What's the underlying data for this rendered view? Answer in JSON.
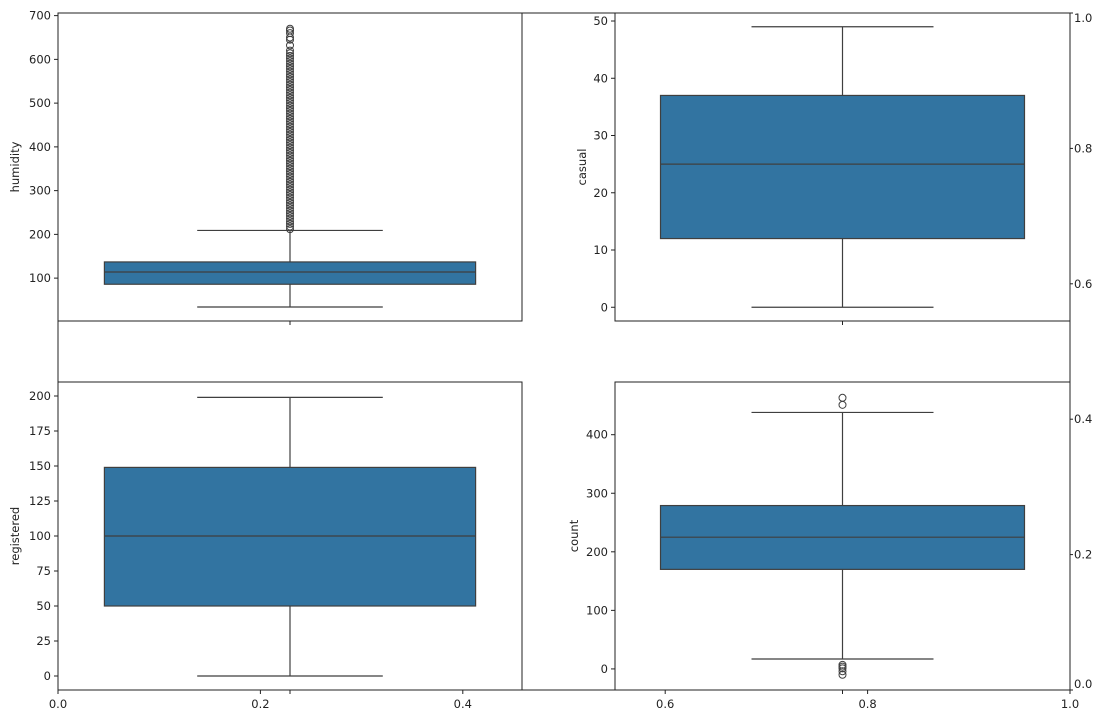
{
  "chart_data": [
    {
      "type": "axes",
      "role": "background",
      "xlim": [
        0,
        1
      ],
      "ylim": [
        0,
        1
      ],
      "xticks": [
        "0.0",
        "0.2",
        "0.4",
        "0.6",
        "0.8",
        "1.0"
      ],
      "yticks": [
        "0.0",
        "0.2",
        "0.4",
        "0.6",
        "0.8",
        "1.0"
      ]
    },
    {
      "type": "box",
      "ylabel": "humidity",
      "ylim": [
        2,
        706
      ],
      "yticks": [
        100,
        200,
        300,
        400,
        500,
        600,
        700
      ],
      "whisker_low": 34,
      "q1": 86,
      "median": 114,
      "q3": 137,
      "whisker_high": 209,
      "outliers": [
        212,
        218,
        224,
        230,
        236,
        242,
        248,
        254,
        260,
        266,
        272,
        278,
        284,
        290,
        296,
        302,
        308,
        314,
        320,
        326,
        332,
        338,
        344,
        350,
        356,
        362,
        368,
        374,
        380,
        386,
        392,
        398,
        404,
        410,
        416,
        422,
        428,
        434,
        440,
        446,
        452,
        458,
        464,
        470,
        476,
        482,
        488,
        494,
        500,
        506,
        512,
        518,
        524,
        530,
        536,
        542,
        548,
        554,
        560,
        566,
        572,
        578,
        584,
        590,
        596,
        602,
        608,
        614,
        620,
        632,
        645,
        650,
        660,
        666,
        670
      ]
    },
    {
      "type": "box",
      "ylabel": "casual",
      "ylim": [
        -2.4,
        51.4
      ],
      "yticks": [
        0,
        10,
        20,
        30,
        40,
        50
      ],
      "whisker_low": 0,
      "q1": 12,
      "median": 25,
      "q3": 37,
      "whisker_high": 49,
      "outliers": []
    },
    {
      "type": "box",
      "ylabel": "registered",
      "ylim": [
        -10,
        210
      ],
      "yticks": [
        0,
        25,
        50,
        75,
        100,
        125,
        150,
        175,
        200
      ],
      "whisker_low": 0,
      "q1": 50,
      "median": 100,
      "q3": 149,
      "whisker_high": 199,
      "outliers": []
    },
    {
      "type": "box",
      "ylabel": "count",
      "ylim": [
        -36,
        490
      ],
      "yticks": [
        0,
        100,
        200,
        300,
        400
      ],
      "whisker_low": 17,
      "q1": 170,
      "median": 225,
      "q3": 279,
      "whisker_high": 438,
      "outliers": [
        463,
        451,
        7,
        4,
        1,
        -4,
        -10
      ]
    }
  ],
  "colors": {
    "box_fill": "#3274a1",
    "line": "#3f3f3f",
    "spine": "#222222"
  }
}
